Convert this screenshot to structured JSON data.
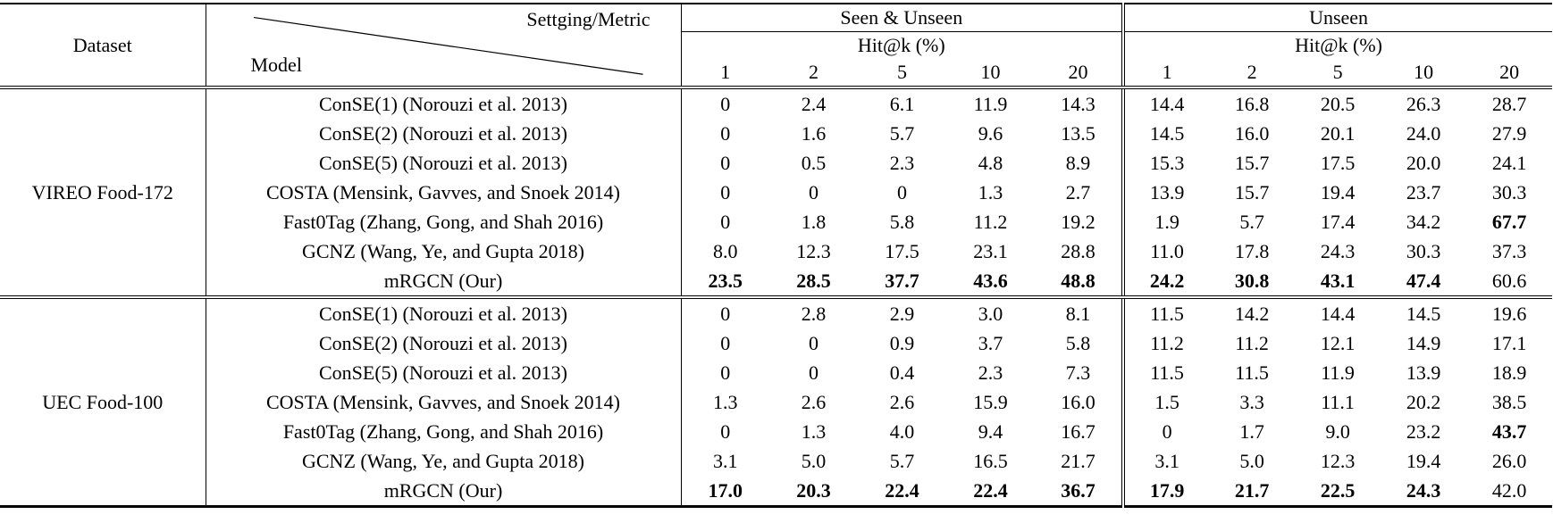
{
  "header": {
    "dataset_label": "Dataset",
    "diagonal_top": "Settging/Metric",
    "diagonal_bottom": "Model",
    "groups": [
      {
        "label": "Seen & Unseen",
        "metric": "Hit@k (%)",
        "ks": [
          "1",
          "2",
          "5",
          "10",
          "20"
        ]
      },
      {
        "label": "Unseen",
        "metric": "Hit@k (%)",
        "ks": [
          "1",
          "2",
          "5",
          "10",
          "20"
        ]
      }
    ]
  },
  "colors": {
    "text": "#000000",
    "background": "#ffffff",
    "rule": "#000000"
  },
  "sections": [
    {
      "dataset": "VIREO Food-172",
      "rows": [
        {
          "model": "ConSE(1) (Norouzi et al. 2013)",
          "seen_unseen": [
            "0",
            "2.4",
            "6.1",
            "11.9",
            "14.3"
          ],
          "seen_unseen_bold": [
            0,
            0,
            0,
            0,
            0
          ],
          "unseen": [
            "14.4",
            "16.8",
            "20.5",
            "26.3",
            "28.7"
          ],
          "unseen_bold": [
            0,
            0,
            0,
            0,
            0
          ]
        },
        {
          "model": "ConSE(2) (Norouzi et al. 2013)",
          "seen_unseen": [
            "0",
            "1.6",
            "5.7",
            "9.6",
            "13.5"
          ],
          "seen_unseen_bold": [
            0,
            0,
            0,
            0,
            0
          ],
          "unseen": [
            "14.5",
            "16.0",
            "20.1",
            "24.0",
            "27.9"
          ],
          "unseen_bold": [
            0,
            0,
            0,
            0,
            0
          ]
        },
        {
          "model": "ConSE(5) (Norouzi et al. 2013)",
          "seen_unseen": [
            "0",
            "0.5",
            "2.3",
            "4.8",
            "8.9"
          ],
          "seen_unseen_bold": [
            0,
            0,
            0,
            0,
            0
          ],
          "unseen": [
            "15.3",
            "15.7",
            "17.5",
            "20.0",
            "24.1"
          ],
          "unseen_bold": [
            0,
            0,
            0,
            0,
            0
          ]
        },
        {
          "model": "COSTA (Mensink, Gavves, and Snoek 2014)",
          "seen_unseen": [
            "0",
            "0",
            "0",
            "1.3",
            "2.7"
          ],
          "seen_unseen_bold": [
            0,
            0,
            0,
            0,
            0
          ],
          "unseen": [
            "13.9",
            "15.7",
            "19.4",
            "23.7",
            "30.3"
          ],
          "unseen_bold": [
            0,
            0,
            0,
            0,
            0
          ]
        },
        {
          "model": "Fast0Tag (Zhang, Gong, and Shah 2016)",
          "seen_unseen": [
            "0",
            "1.8",
            "5.8",
            "11.2",
            "19.2"
          ],
          "seen_unseen_bold": [
            0,
            0,
            0,
            0,
            0
          ],
          "unseen": [
            "1.9",
            "5.7",
            "17.4",
            "34.2",
            "67.7"
          ],
          "unseen_bold": [
            0,
            0,
            0,
            0,
            1
          ]
        },
        {
          "model": "GCNZ (Wang, Ye, and Gupta 2018)",
          "seen_unseen": [
            "8.0",
            "12.3",
            "17.5",
            "23.1",
            "28.8"
          ],
          "seen_unseen_bold": [
            0,
            0,
            0,
            0,
            0
          ],
          "unseen": [
            "11.0",
            "17.8",
            "24.3",
            "30.3",
            "37.3"
          ],
          "unseen_bold": [
            0,
            0,
            0,
            0,
            0
          ]
        },
        {
          "model": "mRGCN (Our)",
          "seen_unseen": [
            "23.5",
            "28.5",
            "37.7",
            "43.6",
            "48.8"
          ],
          "seen_unseen_bold": [
            1,
            1,
            1,
            1,
            1
          ],
          "unseen": [
            "24.2",
            "30.8",
            "43.1",
            "47.4",
            "60.6"
          ],
          "unseen_bold": [
            1,
            1,
            1,
            1,
            0
          ]
        }
      ]
    },
    {
      "dataset": "UEC Food-100",
      "rows": [
        {
          "model": "ConSE(1) (Norouzi et al. 2013)",
          "seen_unseen": [
            "0",
            "2.8",
            "2.9",
            "3.0",
            "8.1"
          ],
          "seen_unseen_bold": [
            0,
            0,
            0,
            0,
            0
          ],
          "unseen": [
            "11.5",
            "14.2",
            "14.4",
            "14.5",
            "19.6"
          ],
          "unseen_bold": [
            0,
            0,
            0,
            0,
            0
          ]
        },
        {
          "model": "ConSE(2) (Norouzi et al. 2013)",
          "seen_unseen": [
            "0",
            "0",
            "0.9",
            "3.7",
            "5.8"
          ],
          "seen_unseen_bold": [
            0,
            0,
            0,
            0,
            0
          ],
          "unseen": [
            "11.2",
            "11.2",
            "12.1",
            "14.9",
            "17.1"
          ],
          "unseen_bold": [
            0,
            0,
            0,
            0,
            0
          ]
        },
        {
          "model": "ConSE(5) (Norouzi et al. 2013)",
          "seen_unseen": [
            "0",
            "0",
            "0.4",
            "2.3",
            "7.3"
          ],
          "seen_unseen_bold": [
            0,
            0,
            0,
            0,
            0
          ],
          "unseen": [
            "11.5",
            "11.5",
            "11.9",
            "13.9",
            "18.9"
          ],
          "unseen_bold": [
            0,
            0,
            0,
            0,
            0
          ]
        },
        {
          "model": "COSTA (Mensink, Gavves, and Snoek 2014)",
          "seen_unseen": [
            "1.3",
            "2.6",
            "2.6",
            "15.9",
            "16.0"
          ],
          "seen_unseen_bold": [
            0,
            0,
            0,
            0,
            0
          ],
          "unseen": [
            "1.5",
            "3.3",
            "11.1",
            "20.2",
            "38.5"
          ],
          "unseen_bold": [
            0,
            0,
            0,
            0,
            0
          ]
        },
        {
          "model": "Fast0Tag (Zhang, Gong, and Shah 2016)",
          "seen_unseen": [
            "0",
            "1.3",
            "4.0",
            "9.4",
            "16.7"
          ],
          "seen_unseen_bold": [
            0,
            0,
            0,
            0,
            0
          ],
          "unseen": [
            "0",
            "1.7",
            "9.0",
            "23.2",
            "43.7"
          ],
          "unseen_bold": [
            0,
            0,
            0,
            0,
            1
          ]
        },
        {
          "model": "GCNZ (Wang, Ye, and Gupta 2018)",
          "seen_unseen": [
            "3.1",
            "5.0",
            "5.7",
            "16.5",
            "21.7"
          ],
          "seen_unseen_bold": [
            0,
            0,
            0,
            0,
            0
          ],
          "unseen": [
            "3.1",
            "5.0",
            "12.3",
            "19.4",
            "26.0"
          ],
          "unseen_bold": [
            0,
            0,
            0,
            0,
            0
          ]
        },
        {
          "model": "mRGCN (Our)",
          "seen_unseen": [
            "17.0",
            "20.3",
            "22.4",
            "22.4",
            "36.7"
          ],
          "seen_unseen_bold": [
            1,
            1,
            1,
            1,
            1
          ],
          "unseen": [
            "17.9",
            "21.7",
            "22.5",
            "24.3",
            "42.0"
          ],
          "unseen_bold": [
            1,
            1,
            1,
            1,
            0
          ]
        }
      ]
    }
  ]
}
